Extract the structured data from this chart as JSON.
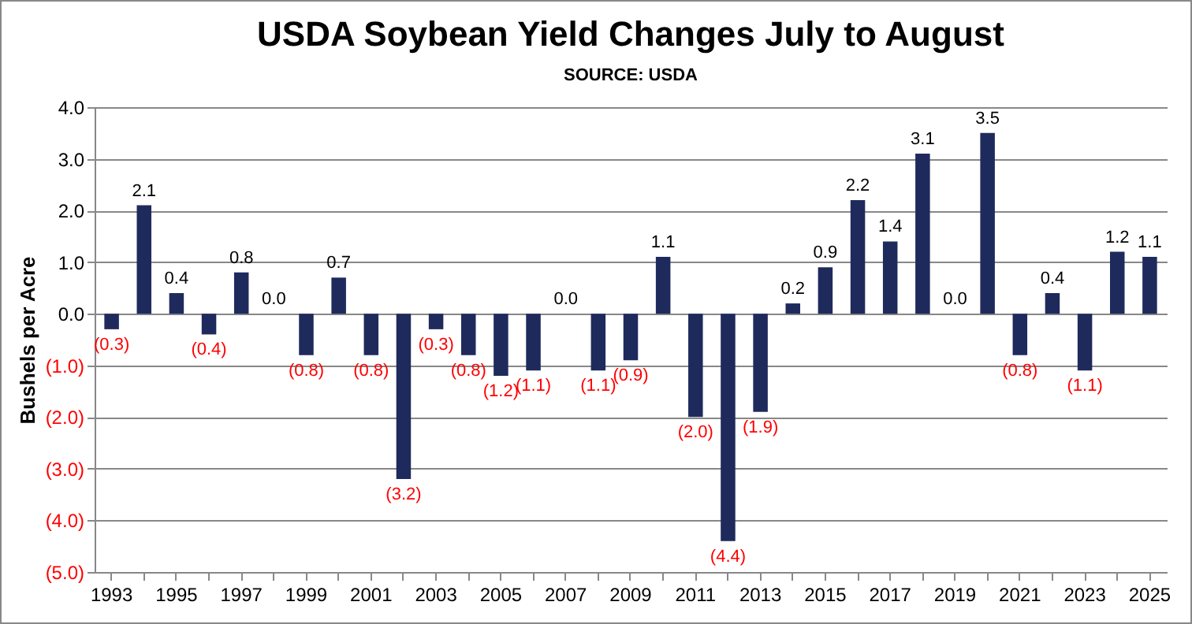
{
  "chart_data": {
    "type": "bar",
    "title": "USDA Soybean Yield Changes July to August",
    "subtitle": "SOURCE: USDA",
    "ylabel": "Bushels per Acre",
    "categories": [
      "1993",
      null,
      "1995",
      null,
      "1997",
      null,
      "1999",
      null,
      "2001",
      null,
      "2003",
      null,
      "2005",
      null,
      "2007",
      null,
      "2009",
      null,
      "2011",
      null,
      "2013",
      null,
      "2015",
      null,
      "2017",
      null,
      "2019",
      null,
      "2021",
      null,
      "2023",
      null,
      "2025"
    ],
    "values": [
      -0.3,
      2.1,
      0.4,
      -0.4,
      0.8,
      0.0,
      -0.8,
      0.7,
      -0.8,
      -3.2,
      -0.3,
      -0.8,
      -1.2,
      -1.1,
      0.0,
      -1.1,
      -0.9,
      1.1,
      -2.0,
      -4.4,
      -1.9,
      0.2,
      0.9,
      2.2,
      1.4,
      3.1,
      0.0,
      3.5,
      -0.8,
      0.4,
      -1.1,
      1.2,
      1.1
    ],
    "value_labels": [
      "(0.3)",
      "2.1",
      "0.4",
      "(0.4)",
      "0.8",
      "0.0",
      "(0.8)",
      "0.7",
      "(0.8)",
      "(3.2)",
      "(0.3)",
      "(0.8)",
      "(1.2)",
      "(1.1)",
      "0.0",
      "(1.1)",
      "(0.9)",
      "1.1",
      "(2.0)",
      "(4.4)",
      "(1.9)",
      "0.2",
      "0.9",
      "2.2",
      "1.4",
      "3.1",
      "0.0",
      "3.5",
      "(0.8)",
      "0.4",
      "(1.1)",
      "1.2",
      "1.1"
    ],
    "color": "#1f2a5c",
    "ylim": [
      -5,
      4
    ],
    "yticks": [
      {
        "value": -5,
        "label": "(5.0)"
      },
      {
        "value": -4,
        "label": "(4.0)"
      },
      {
        "value": -3,
        "label": "(3.0)"
      },
      {
        "value": -2,
        "label": "(2.0)"
      },
      {
        "value": -1,
        "label": "(1.0)"
      },
      {
        "value": 0,
        "label": "0.0"
      },
      {
        "value": 1,
        "label": "1.0"
      },
      {
        "value": 2,
        "label": "2.0"
      },
      {
        "value": 3,
        "label": "3.0"
      },
      {
        "value": 4,
        "label": "4.0"
      }
    ],
    "grid": "y"
  }
}
